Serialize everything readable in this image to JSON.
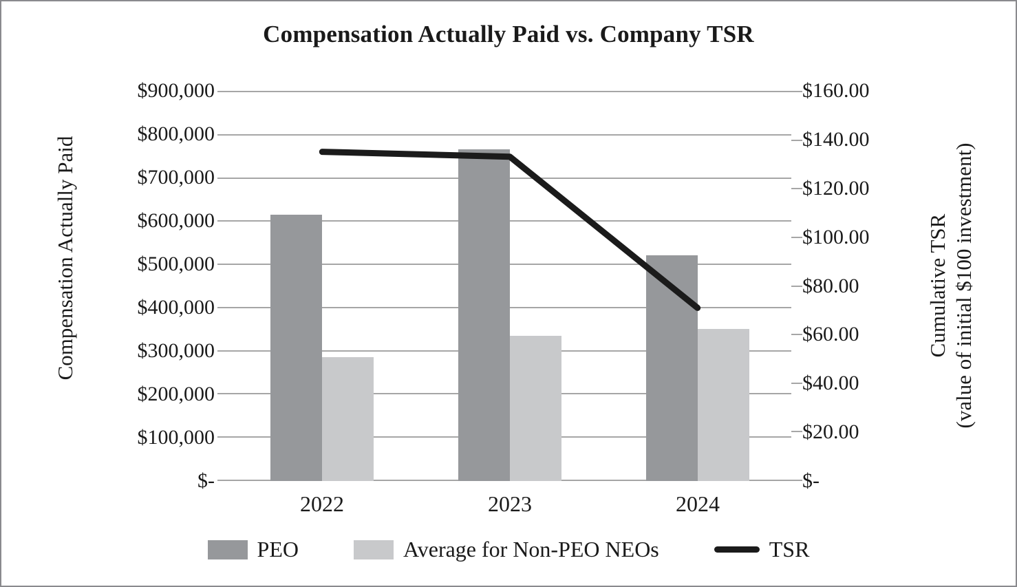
{
  "chart_data": {
    "type": "combo-bar-line",
    "title": "Compensation Actually Paid vs. Company TSR",
    "categories": [
      "2022",
      "2023",
      "2024"
    ],
    "series": [
      {
        "key": "peo",
        "name": "PEO",
        "chart": "bar",
        "axis": "left",
        "color": "#96989b",
        "values": [
          615000,
          765000,
          520000
        ]
      },
      {
        "key": "non-peo-avg",
        "name": "Average for Non-PEO NEOs",
        "chart": "bar",
        "axis": "left",
        "color": "#c8c9cb",
        "values": [
          285000,
          335000,
          350000
        ]
      },
      {
        "key": "tsr",
        "name": "TSR",
        "chart": "line",
        "axis": "right",
        "color": "#1b1b1b",
        "values": [
          135,
          133,
          71
        ]
      }
    ],
    "left_axis": {
      "title": "Compensation Actually Paid",
      "min": 0,
      "max": 900000,
      "tick_labels": [
        "$900,000",
        "$800,000",
        "$700,000",
        "$600,000",
        "$500,000",
        "$400,000",
        "$300,000",
        "$200,000",
        "$100,000",
        "$-"
      ]
    },
    "right_axis": {
      "title_line1": "Cumulative TSR",
      "title_line2": "(value of initial $100 investment)",
      "min": 0,
      "max": 160,
      "tick_labels": [
        "$160.00",
        "$140.00",
        "$120.00",
        "$100.00",
        "$80.00",
        "$60.00",
        "$40.00",
        "$20.00",
        "$-"
      ]
    },
    "grid": true,
    "legend_position": "bottom"
  },
  "colors": {
    "gridline": "#a6a6a6",
    "tick": "#a6a6a6",
    "frame_border": "#8a8a8e",
    "text": "#1a1a1a",
    "background": "#ffffff"
  }
}
